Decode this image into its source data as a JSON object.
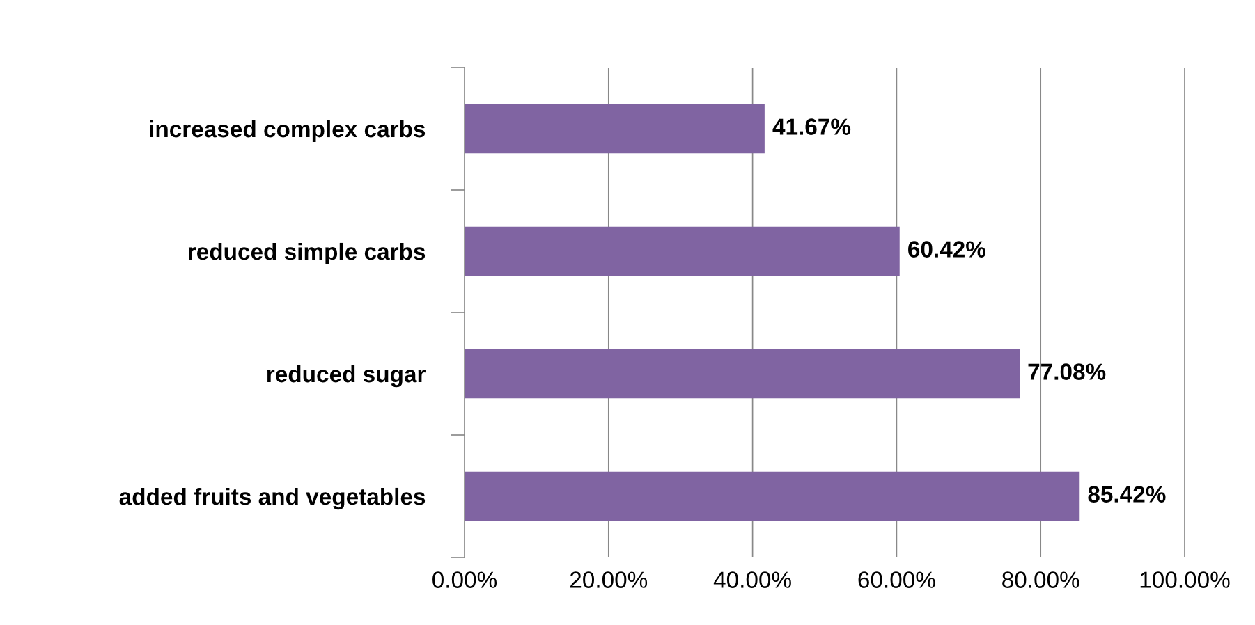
{
  "chart_data": {
    "type": "bar",
    "orientation": "horizontal",
    "categories": [
      "increased complex carbs",
      "reduced simple carbs",
      "reduced sugar",
      "added fruits and vegetables"
    ],
    "values": [
      41.67,
      60.42,
      77.08,
      85.42
    ],
    "value_labels": [
      "41.67%",
      "60.42%",
      "77.08%",
      "85.42%"
    ],
    "color": "#8064a2",
    "xlim": [
      0,
      100
    ],
    "xticks": [
      {
        "value": 0,
        "label": "0.00%"
      },
      {
        "value": 20,
        "label": "20.00%"
      },
      {
        "value": 40,
        "label": "40.00%"
      },
      {
        "value": 60,
        "label": "60.00%"
      },
      {
        "value": 80,
        "label": "80.00%"
      },
      {
        "value": 100,
        "label": "100.00%"
      }
    ],
    "grid": "x"
  }
}
